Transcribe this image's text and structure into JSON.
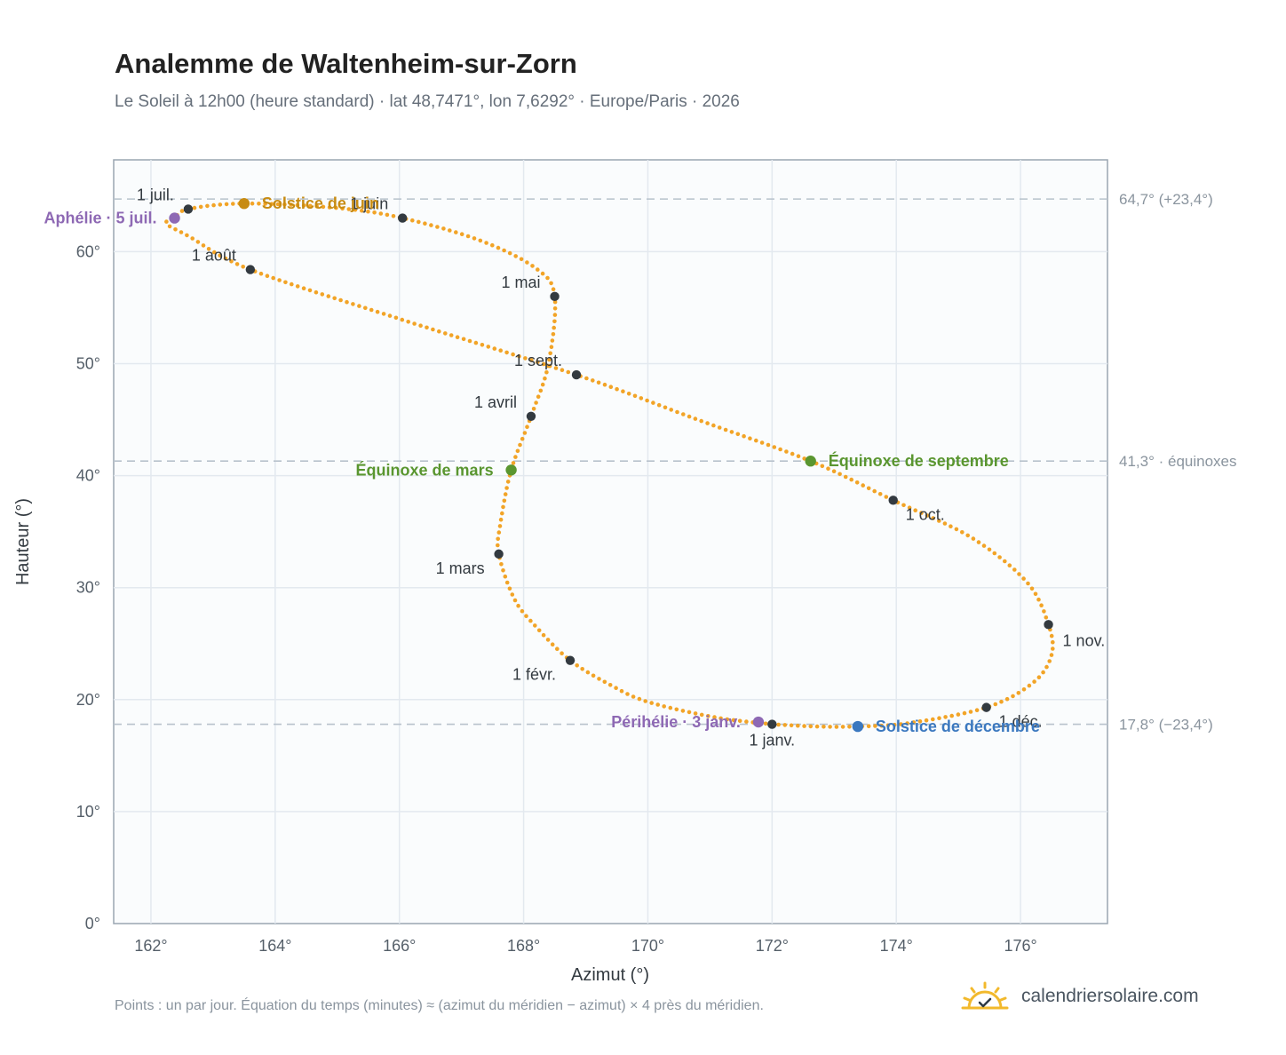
{
  "header": {
    "title": "Analemme de Waltenheim-sur-Zorn",
    "subtitle": "Le Soleil à 12h00 (heure standard) · lat 48,7471°, lon 7,6292° · Europe/Paris · 2026"
  },
  "footer": {
    "note": "Points : un par jour. Équation du temps (minutes) ≈ (azimut du méridien − azimut) × 4 près du méridien.",
    "brand": "calendriersolaire.com",
    "brand_icon": "sun-logo-icon"
  },
  "colors": {
    "curve": "#f2a427",
    "month_marker": "#333a40",
    "solstice_june": "#c78b12",
    "solstice_december": "#3b78bf",
    "equinox": "#5a9630",
    "apsis": "#8e69b4",
    "reference_line": "#b8c2cc",
    "plot_bg": "#fafcfd",
    "grid": "#e3e9ef"
  },
  "chart_data": {
    "type": "scatter",
    "xlabel": "Azimut (°)",
    "ylabel": "Hauteur (°)",
    "xlim": [
      161.4,
      177.4
    ],
    "ylim": [
      0,
      68.2
    ],
    "xticks": [
      162,
      164,
      166,
      168,
      170,
      172,
      174,
      176
    ],
    "yticks": [
      0,
      10,
      20,
      30,
      40,
      50,
      60
    ],
    "grid": true,
    "path_anchors": [
      {
        "x": 172.0,
        "y": 17.8
      },
      {
        "x": 171.1,
        "y": 18.4
      },
      {
        "x": 170.0,
        "y": 19.8
      },
      {
        "x": 169.4,
        "y": 21.3
      },
      {
        "x": 168.75,
        "y": 23.5
      },
      {
        "x": 168.2,
        "y": 26.5
      },
      {
        "x": 167.85,
        "y": 29.0
      },
      {
        "x": 167.6,
        "y": 33.0
      },
      {
        "x": 167.62,
        "y": 35.5
      },
      {
        "x": 167.8,
        "y": 40.5
      },
      {
        "x": 168.12,
        "y": 45.3
      },
      {
        "x": 168.4,
        "y": 50.0
      },
      {
        "x": 168.5,
        "y": 56.0
      },
      {
        "x": 168.2,
        "y": 58.5
      },
      {
        "x": 167.3,
        "y": 61.0
      },
      {
        "x": 166.05,
        "y": 63.0
      },
      {
        "x": 165.0,
        "y": 63.9
      },
      {
        "x": 163.5,
        "y": 64.3
      },
      {
        "x": 162.6,
        "y": 63.8
      },
      {
        "x": 162.38,
        "y": 63.0
      },
      {
        "x": 162.25,
        "y": 62.5
      },
      {
        "x": 162.6,
        "y": 61.4
      },
      {
        "x": 163.6,
        "y": 58.4
      },
      {
        "x": 166.0,
        "y": 54.0
      },
      {
        "x": 168.85,
        "y": 49.0
      },
      {
        "x": 170.8,
        "y": 45.0
      },
      {
        "x": 172.62,
        "y": 41.3
      },
      {
        "x": 173.95,
        "y": 37.8
      },
      {
        "x": 175.2,
        "y": 34.5
      },
      {
        "x": 176.1,
        "y": 30.5
      },
      {
        "x": 176.45,
        "y": 26.7
      },
      {
        "x": 176.5,
        "y": 24.0
      },
      {
        "x": 176.2,
        "y": 21.5
      },
      {
        "x": 175.45,
        "y": 19.3
      },
      {
        "x": 174.2,
        "y": 17.9
      },
      {
        "x": 173.38,
        "y": 17.6
      },
      {
        "x": 172.7,
        "y": 17.6
      },
      {
        "x": 172.0,
        "y": 17.8
      }
    ],
    "month_markers": [
      {
        "label": "1 janv.",
        "x": 172.0,
        "y": 17.8,
        "pos": "below"
      },
      {
        "label": "1 févr.",
        "x": 168.75,
        "y": 23.5,
        "pos": "below-left"
      },
      {
        "label": "1 mars",
        "x": 167.6,
        "y": 33.0,
        "pos": "below-left"
      },
      {
        "label": "1 avril",
        "x": 168.12,
        "y": 45.3,
        "pos": "above-left"
      },
      {
        "label": "1 mai",
        "x": 168.5,
        "y": 56.0,
        "pos": "above-left"
      },
      {
        "label": "1 juin",
        "x": 166.05,
        "y": 63.0,
        "pos": "above-left"
      },
      {
        "label": "1 juil.",
        "x": 162.6,
        "y": 63.8,
        "pos": "above-left"
      },
      {
        "label": "1 août",
        "x": 163.6,
        "y": 58.4,
        "pos": "above-left"
      },
      {
        "label": "1 sept.",
        "x": 168.85,
        "y": 49.0,
        "pos": "above-left"
      },
      {
        "label": "1 oct.",
        "x": 173.95,
        "y": 37.8,
        "pos": "below-right"
      },
      {
        "label": "1 nov.",
        "x": 176.45,
        "y": 26.7,
        "pos": "right"
      },
      {
        "label": "1 déc.",
        "x": 175.45,
        "y": 19.3,
        "pos": "below-right"
      }
    ],
    "events": [
      {
        "label": "Solstice de juin",
        "x": 163.5,
        "y": 64.3,
        "kind": "solstice_june",
        "pos": "right"
      },
      {
        "label": "Solstice de décembre",
        "x": 173.38,
        "y": 17.6,
        "kind": "solstice_december",
        "pos": "right"
      },
      {
        "label": "Équinoxe de mars",
        "x": 167.8,
        "y": 40.5,
        "kind": "equinox",
        "pos": "left"
      },
      {
        "label": "Équinoxe de septembre",
        "x": 172.62,
        "y": 41.3,
        "kind": "equinox",
        "pos": "right"
      },
      {
        "label": "Aphélie · 5 juil.",
        "x": 162.38,
        "y": 63.0,
        "kind": "apsis",
        "pos": "left"
      },
      {
        "label": "Périhélie · 3 janv.",
        "x": 171.78,
        "y": 18.0,
        "kind": "apsis",
        "pos": "left"
      }
    ],
    "reference_lines": [
      {
        "y": 64.7,
        "label": "64,7° (+23,4°)"
      },
      {
        "y": 41.3,
        "label": "41,3° · équinoxes"
      },
      {
        "y": 17.8,
        "label": "17,8° (−23,4°)"
      }
    ]
  }
}
